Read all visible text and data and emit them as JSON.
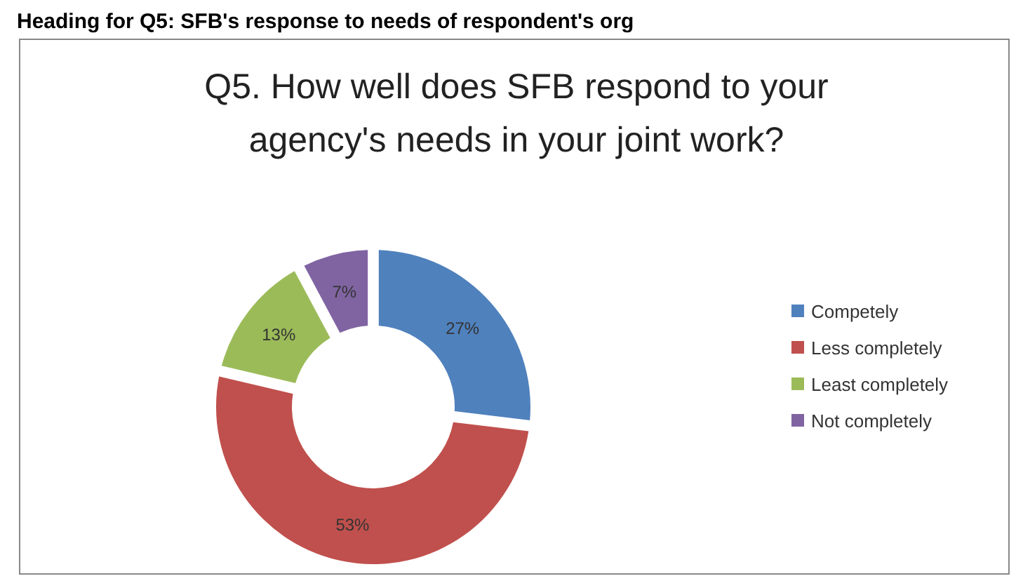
{
  "chart_data": {
    "type": "donut",
    "title": "Q5. How well does SFB respond to your agency's needs in your joint work?",
    "annotations": [
      "Heading for Q5: SFB's response to needs of respondent's org"
    ],
    "categories": [
      "Competely",
      "Less completely",
      "Least completely",
      "Not completely"
    ],
    "values": [
      27,
      53,
      13,
      7
    ],
    "colors": [
      "#4f81bd",
      "#c0504d",
      "#9bbb59",
      "#8064a2"
    ],
    "value_labels": [
      "27%",
      "53%",
      "13%",
      "7%"
    ],
    "legend": "right"
  }
}
